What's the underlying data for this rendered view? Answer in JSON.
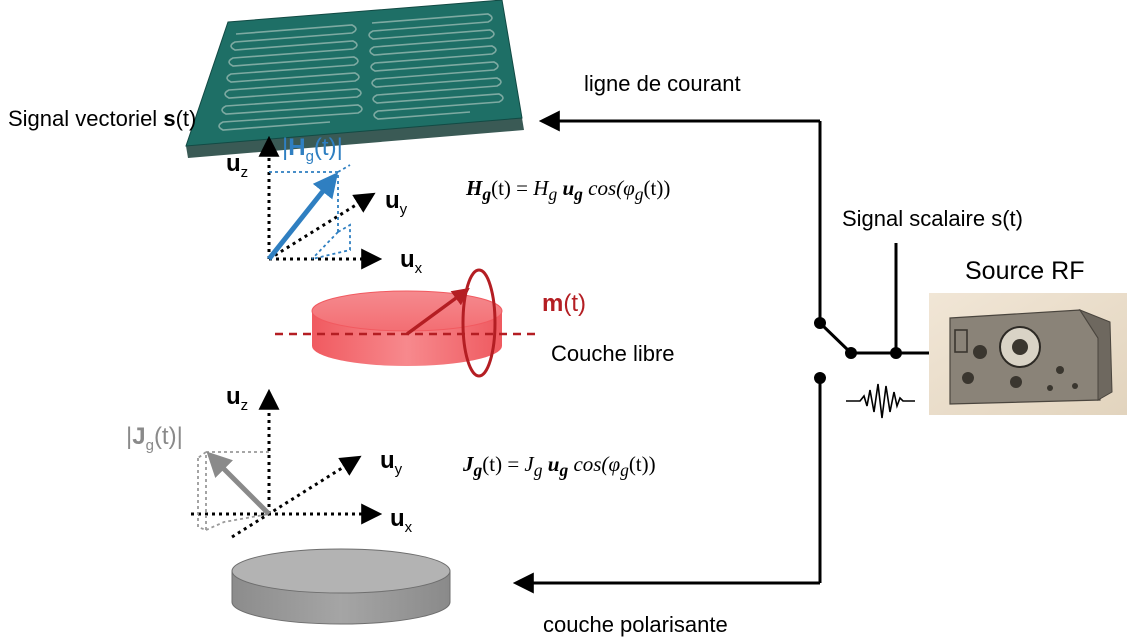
{
  "labels": {
    "signal_vectoriel_prefix": "Signal vectoriel ",
    "signal_vectoriel_bold": "s",
    "signal_vectoriel_suffix": "(t)",
    "ligne_de_courant": "ligne de courant",
    "signal_scalaire": "Signal scalaire s(t)",
    "source_rf": "Source RF",
    "couche_libre": "Couche libre",
    "couche_polarisante": "couche polarisante",
    "m_bold": "m",
    "m_suffix": "(t)"
  },
  "vectors": {
    "hg_label_main": "H",
    "hg_label_sub": "g",
    "hg_label_tail": "(t)",
    "jg_label_main": "J",
    "jg_label_sub": "g",
    "jg_label_tail": "(t)"
  },
  "axes": {
    "u": "u",
    "z": "z",
    "y": "y",
    "x": "x"
  },
  "equations": {
    "h_lhs": "H",
    "h_mag": "H",
    "j_lhs": "J",
    "j_mag": "J",
    "sub": "g",
    "t_part": "(t) = ",
    "u_vec": "u",
    "cos_part": " cos(",
    "phi": "φ",
    "end_part": "(t))"
  },
  "colors": {
    "hg_blue": "#2F7FC1",
    "jg_gray": "#8A8A8A",
    "m_red": "#B41E23",
    "layer_red": "#F47C80",
    "layer_gray": "#9A9A9A",
    "plate_teal": "#1F7A6E"
  },
  "icons": {
    "rf_source": "rf-signal-generator-icon",
    "wave": "rf-wave-burst-icon",
    "meander": "meander-stripline-icon"
  }
}
